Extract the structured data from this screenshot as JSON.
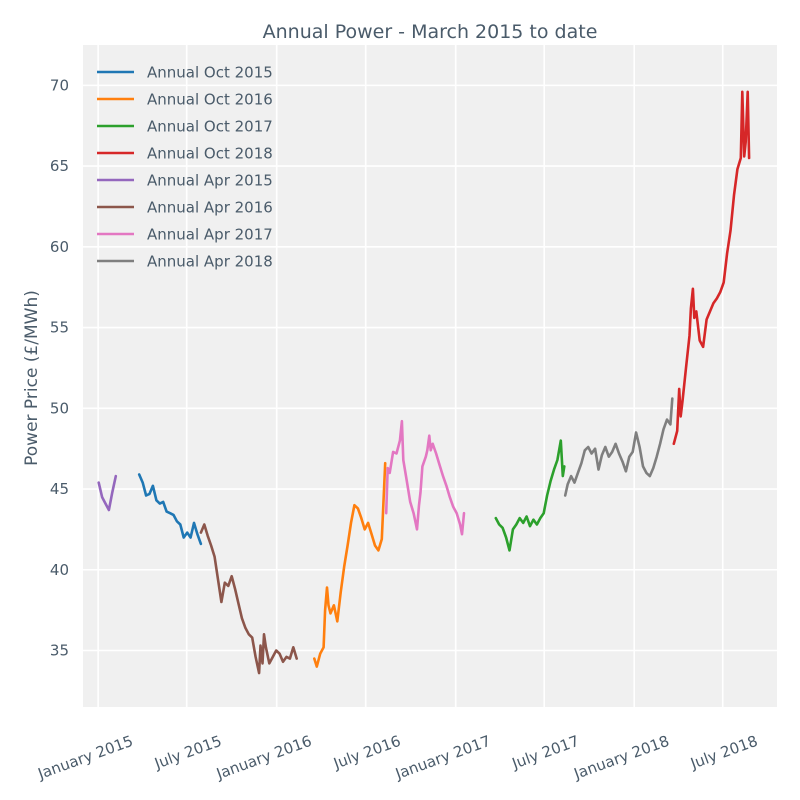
{
  "chart_data": {
    "type": "line",
    "title": "Annual Power - March 2015 to date",
    "xlabel": "",
    "ylabel": "Power Price (£/MWh)",
    "ylim": [
      31.5,
      72.5
    ],
    "xlim": [
      "2014-12-01",
      "2018-10-20"
    ],
    "x_ticks": [
      {
        "date": "2015-01-01",
        "label": "January 2015"
      },
      {
        "date": "2015-07-01",
        "label": "July 2015"
      },
      {
        "date": "2016-01-01",
        "label": "January 2016"
      },
      {
        "date": "2016-07-01",
        "label": "July 2016"
      },
      {
        "date": "2017-01-01",
        "label": "January 2017"
      },
      {
        "date": "2017-07-01",
        "label": "July 2017"
      },
      {
        "date": "2018-01-01",
        "label": "January 2018"
      },
      {
        "date": "2018-07-01",
        "label": "July 2018"
      }
    ],
    "y_ticks": [
      35,
      40,
      45,
      50,
      55,
      60,
      65,
      70
    ],
    "grid": true,
    "legend_position": "top-left",
    "series": [
      {
        "name": "Annual Oct 2015",
        "color": "#1f77b4",
        "points": [
          [
            "2015-03-26",
            45.9
          ],
          [
            "2015-04-02",
            45.4
          ],
          [
            "2015-04-09",
            44.6
          ],
          [
            "2015-04-16",
            44.7
          ],
          [
            "2015-04-23",
            45.2
          ],
          [
            "2015-04-30",
            44.3
          ],
          [
            "2015-05-07",
            44.1
          ],
          [
            "2015-05-14",
            44.2
          ],
          [
            "2015-05-21",
            43.6
          ],
          [
            "2015-05-28",
            43.5
          ],
          [
            "2015-06-04",
            43.4
          ],
          [
            "2015-06-11",
            43.0
          ],
          [
            "2015-06-18",
            42.8
          ],
          [
            "2015-06-25",
            42.0
          ],
          [
            "2015-07-02",
            42.3
          ],
          [
            "2015-07-09",
            42.0
          ],
          [
            "2015-07-16",
            42.9
          ],
          [
            "2015-07-23",
            42.2
          ],
          [
            "2015-07-30",
            41.6
          ]
        ]
      },
      {
        "name": "Annual Oct 2016",
        "color": "#ff7f0e",
        "points": [
          [
            "2016-03-18",
            34.5
          ],
          [
            "2016-03-23",
            34.0
          ],
          [
            "2016-03-30",
            34.8
          ],
          [
            "2016-04-06",
            35.2
          ],
          [
            "2016-04-09",
            37.5
          ],
          [
            "2016-04-13",
            38.9
          ],
          [
            "2016-04-16",
            37.8
          ],
          [
            "2016-04-20",
            37.3
          ],
          [
            "2016-04-27",
            37.8
          ],
          [
            "2016-05-04",
            36.8
          ],
          [
            "2016-05-11",
            38.6
          ],
          [
            "2016-05-18",
            40.2
          ],
          [
            "2016-05-25",
            41.5
          ],
          [
            "2016-06-01",
            42.9
          ],
          [
            "2016-06-08",
            44.0
          ],
          [
            "2016-06-15",
            43.8
          ],
          [
            "2016-06-22",
            43.2
          ],
          [
            "2016-06-29",
            42.5
          ],
          [
            "2016-07-06",
            42.9
          ],
          [
            "2016-07-13",
            42.2
          ],
          [
            "2016-07-20",
            41.5
          ],
          [
            "2016-07-27",
            41.2
          ],
          [
            "2016-08-03",
            41.9
          ],
          [
            "2016-08-10",
            46.6
          ]
        ]
      },
      {
        "name": "Annual Oct 2017",
        "color": "#2ca02c",
        "points": [
          [
            "2017-03-24",
            43.2
          ],
          [
            "2017-03-31",
            42.8
          ],
          [
            "2017-04-07",
            42.6
          ],
          [
            "2017-04-14",
            42.0
          ],
          [
            "2017-04-21",
            41.2
          ],
          [
            "2017-04-28",
            42.5
          ],
          [
            "2017-05-05",
            42.8
          ],
          [
            "2017-05-12",
            43.2
          ],
          [
            "2017-05-19",
            42.9
          ],
          [
            "2017-05-26",
            43.3
          ],
          [
            "2017-06-02",
            42.7
          ],
          [
            "2017-06-09",
            43.1
          ],
          [
            "2017-06-16",
            42.8
          ],
          [
            "2017-06-23",
            43.2
          ],
          [
            "2017-06-30",
            43.5
          ],
          [
            "2017-07-07",
            44.6
          ],
          [
            "2017-07-14",
            45.5
          ],
          [
            "2017-07-21",
            46.2
          ],
          [
            "2017-07-28",
            46.8
          ],
          [
            "2017-08-04",
            48.0
          ],
          [
            "2017-08-08",
            45.8
          ],
          [
            "2017-08-11",
            46.4
          ]
        ]
      },
      {
        "name": "Annual Oct 2018",
        "color": "#d62728",
        "points": [
          [
            "2018-03-23",
            47.8
          ],
          [
            "2018-03-30",
            48.6
          ],
          [
            "2018-04-03",
            51.2
          ],
          [
            "2018-04-06",
            49.5
          ],
          [
            "2018-04-10",
            50.5
          ],
          [
            "2018-04-17",
            52.5
          ],
          [
            "2018-04-24",
            54.5
          ],
          [
            "2018-04-27",
            56.2
          ],
          [
            "2018-05-01",
            57.4
          ],
          [
            "2018-05-04",
            55.6
          ],
          [
            "2018-05-08",
            56.0
          ],
          [
            "2018-05-15",
            54.2
          ],
          [
            "2018-05-22",
            53.8
          ],
          [
            "2018-05-29",
            55.5
          ],
          [
            "2018-06-05",
            56.0
          ],
          [
            "2018-06-12",
            56.5
          ],
          [
            "2018-06-19",
            56.8
          ],
          [
            "2018-06-26",
            57.2
          ],
          [
            "2018-07-03",
            57.8
          ],
          [
            "2018-07-10",
            59.6
          ],
          [
            "2018-07-17",
            61.0
          ],
          [
            "2018-07-24",
            63.2
          ],
          [
            "2018-07-31",
            64.8
          ],
          [
            "2018-08-07",
            65.5
          ],
          [
            "2018-08-10",
            69.6
          ],
          [
            "2018-08-14",
            65.6
          ],
          [
            "2018-08-17",
            66.5
          ],
          [
            "2018-08-21",
            69.6
          ],
          [
            "2018-08-24",
            65.5
          ]
        ]
      },
      {
        "name": "Annual Apr 2015",
        "color": "#9467bd",
        "points": [
          [
            "2015-01-02",
            45.4
          ],
          [
            "2015-01-09",
            44.5
          ],
          [
            "2015-01-16",
            44.1
          ],
          [
            "2015-01-23",
            43.7
          ],
          [
            "2015-01-30",
            44.8
          ],
          [
            "2015-02-06",
            45.8
          ]
        ]
      },
      {
        "name": "Annual Apr 2016",
        "color": "#8c564b",
        "points": [
          [
            "2015-07-30",
            42.3
          ],
          [
            "2015-08-06",
            42.8
          ],
          [
            "2015-08-13",
            42.1
          ],
          [
            "2015-08-20",
            41.5
          ],
          [
            "2015-08-27",
            40.8
          ],
          [
            "2015-09-03",
            39.4
          ],
          [
            "2015-09-10",
            38.0
          ],
          [
            "2015-09-17",
            39.2
          ],
          [
            "2015-09-24",
            39.0
          ],
          [
            "2015-10-01",
            39.6
          ],
          [
            "2015-10-08",
            38.8
          ],
          [
            "2015-10-15",
            37.9
          ],
          [
            "2015-10-22",
            37.0
          ],
          [
            "2015-10-29",
            36.4
          ],
          [
            "2015-11-05",
            36.0
          ],
          [
            "2015-11-12",
            35.8
          ],
          [
            "2015-11-19",
            34.6
          ],
          [
            "2015-11-26",
            33.6
          ],
          [
            "2015-11-29",
            35.3
          ],
          [
            "2015-12-03",
            34.2
          ],
          [
            "2015-12-06",
            36.0
          ],
          [
            "2015-12-10",
            35.2
          ],
          [
            "2015-12-17",
            34.2
          ],
          [
            "2015-12-24",
            34.6
          ],
          [
            "2015-12-31",
            35.0
          ],
          [
            "2016-01-07",
            34.8
          ],
          [
            "2016-01-14",
            34.3
          ],
          [
            "2016-01-21",
            34.6
          ],
          [
            "2016-01-28",
            34.5
          ],
          [
            "2016-02-04",
            35.2
          ],
          [
            "2016-02-11",
            34.5
          ]
        ]
      },
      {
        "name": "Annual Apr 2017",
        "color": "#e377c2",
        "points": [
          [
            "2016-08-12",
            43.5
          ],
          [
            "2016-08-15",
            46.3
          ],
          [
            "2016-08-19",
            46.0
          ],
          [
            "2016-08-26",
            47.3
          ],
          [
            "2016-09-02",
            47.2
          ],
          [
            "2016-09-09",
            48.0
          ],
          [
            "2016-09-13",
            49.2
          ],
          [
            "2016-09-16",
            46.8
          ],
          [
            "2016-09-23",
            45.5
          ],
          [
            "2016-09-30",
            44.2
          ],
          [
            "2016-10-07",
            43.5
          ],
          [
            "2016-10-14",
            42.5
          ],
          [
            "2016-10-18",
            44.0
          ],
          [
            "2016-10-21",
            44.8
          ],
          [
            "2016-10-25",
            46.4
          ],
          [
            "2016-11-01",
            47.0
          ],
          [
            "2016-11-04",
            47.4
          ],
          [
            "2016-11-08",
            48.3
          ],
          [
            "2016-11-11",
            47.4
          ],
          [
            "2016-11-15",
            47.8
          ],
          [
            "2016-11-22",
            47.2
          ],
          [
            "2016-11-29",
            46.5
          ],
          [
            "2016-12-06",
            45.8
          ],
          [
            "2016-12-13",
            45.2
          ],
          [
            "2016-12-20",
            44.5
          ],
          [
            "2016-12-27",
            43.9
          ],
          [
            "2017-01-03",
            43.5
          ],
          [
            "2017-01-10",
            42.8
          ],
          [
            "2017-01-14",
            42.2
          ],
          [
            "2017-01-18",
            43.5
          ]
        ]
      },
      {
        "name": "Annual Apr 2018",
        "color": "#7f7f7f",
        "points": [
          [
            "2017-08-13",
            44.6
          ],
          [
            "2017-08-18",
            45.3
          ],
          [
            "2017-08-25",
            45.8
          ],
          [
            "2017-09-01",
            45.4
          ],
          [
            "2017-09-08",
            46.0
          ],
          [
            "2017-09-15",
            46.6
          ],
          [
            "2017-09-22",
            47.4
          ],
          [
            "2017-09-29",
            47.6
          ],
          [
            "2017-10-06",
            47.2
          ],
          [
            "2017-10-13",
            47.5
          ],
          [
            "2017-10-20",
            46.2
          ],
          [
            "2017-10-27",
            47.1
          ],
          [
            "2017-11-03",
            47.6
          ],
          [
            "2017-11-10",
            47.0
          ],
          [
            "2017-11-17",
            47.3
          ],
          [
            "2017-11-24",
            47.8
          ],
          [
            "2017-12-01",
            47.2
          ],
          [
            "2017-12-08",
            46.7
          ],
          [
            "2017-12-15",
            46.1
          ],
          [
            "2017-12-22",
            47.0
          ],
          [
            "2017-12-29",
            47.3
          ],
          [
            "2018-01-05",
            48.5
          ],
          [
            "2018-01-12",
            47.6
          ],
          [
            "2018-01-19",
            46.4
          ],
          [
            "2018-01-26",
            46.0
          ],
          [
            "2018-02-02",
            45.8
          ],
          [
            "2018-02-09",
            46.3
          ],
          [
            "2018-02-16",
            47.0
          ],
          [
            "2018-02-23",
            47.8
          ],
          [
            "2018-03-02",
            48.7
          ],
          [
            "2018-03-09",
            49.3
          ],
          [
            "2018-03-16",
            49.0
          ],
          [
            "2018-03-20",
            50.6
          ]
        ]
      }
    ]
  }
}
